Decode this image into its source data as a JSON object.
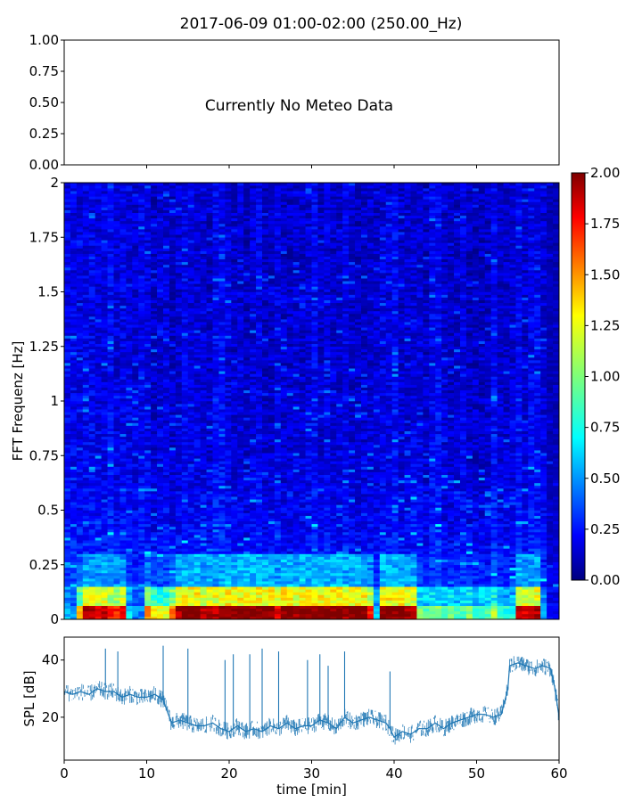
{
  "title": "2017-06-09 01:00-02:00 (250.00_Hz)",
  "chart_data": [
    {
      "type": "line",
      "panel": "meteo",
      "annotation": "Currently No Meteo Data",
      "ylim": [
        0,
        1
      ],
      "yticks": [
        "0.00",
        "0.25",
        "0.50",
        "0.75",
        "1.00"
      ],
      "xlim": [
        0,
        60
      ],
      "xticks_shown": false,
      "grid": false
    },
    {
      "type": "heatmap",
      "panel": "spectrogram",
      "ylabel": "FFT Frequenz [Hz]",
      "ylim": [
        0,
        2
      ],
      "yticks": [
        "0",
        "0.25",
        "0.5",
        "0.75",
        "1",
        "1.25",
        "1.5",
        "1.75",
        "2"
      ],
      "xlim": [
        0,
        60
      ],
      "colormap": "jet",
      "colorbar": {
        "range": [
          0,
          2
        ],
        "ticks": [
          "0.00",
          "0.25",
          "0.50",
          "0.75",
          "1.00",
          "1.25",
          "1.50",
          "1.75",
          "2.00"
        ]
      },
      "low_band_intensity": {
        "x": [
          1,
          2,
          3,
          4,
          5,
          6,
          7,
          8,
          9,
          10,
          11,
          12,
          13,
          14,
          15,
          16,
          17,
          18,
          19,
          20,
          21,
          22,
          23,
          24,
          25,
          26,
          27,
          28,
          29,
          30,
          31,
          32,
          33,
          34,
          35,
          36,
          37,
          38,
          39,
          40,
          41,
          42,
          43,
          44,
          45,
          46,
          47,
          48,
          49,
          50,
          51,
          52,
          53,
          54,
          55,
          56,
          57,
          58,
          59
        ],
        "values": [
          0.6,
          1.4,
          1.9,
          1.8,
          1.9,
          1.7,
          1.8,
          0.7,
          0.5,
          1.5,
          1.3,
          1.2,
          1.5,
          1.9,
          2.0,
          2.0,
          1.9,
          1.9,
          2.0,
          2.0,
          2.0,
          2.0,
          2.0,
          2.0,
          2.0,
          1.8,
          2.0,
          1.9,
          2.0,
          2.0,
          2.0,
          2.0,
          2.0,
          1.9,
          2.0,
          2.0,
          1.7,
          0.7,
          2.0,
          2.0,
          2.0,
          1.9,
          1.0,
          0.9,
          1.0,
          0.9,
          1.0,
          0.9,
          1.0,
          0.8,
          0.9,
          1.1,
          0.9,
          0.8,
          1.9,
          1.8,
          1.9,
          0.6,
          0.4
        ]
      }
    },
    {
      "type": "line",
      "panel": "spl",
      "ylabel": "SPL [dB]",
      "xlabel": "time [min]",
      "xlim": [
        0,
        60
      ],
      "ylim": [
        5,
        48
      ],
      "xticks": [
        "0",
        "10",
        "20",
        "30",
        "40",
        "50",
        "60"
      ],
      "yticks": [
        "20",
        "40"
      ],
      "color": "#1f77b4",
      "x": [
        0,
        1,
        2,
        3,
        4,
        5,
        6,
        7,
        8,
        9,
        10,
        11,
        12,
        12.5,
        13,
        14,
        15,
        16,
        17,
        18,
        19,
        20,
        21,
        22,
        23,
        24,
        25,
        26,
        27,
        28,
        29,
        30,
        31,
        32,
        33,
        34,
        35,
        36,
        37,
        38,
        39,
        39.5,
        40,
        41,
        42,
        43,
        44,
        45,
        46,
        47,
        48,
        49,
        50,
        51,
        52,
        53,
        53.8,
        54,
        55,
        56,
        57,
        58,
        59,
        59.5,
        60
      ],
      "y": [
        29,
        28,
        29,
        28,
        30,
        29,
        29,
        27,
        28,
        27,
        27,
        28,
        26,
        22,
        18,
        19,
        18,
        17,
        17,
        18,
        16,
        15,
        17,
        15,
        16,
        15,
        17,
        16,
        18,
        16,
        17,
        17,
        19,
        18,
        16,
        20,
        18,
        19,
        20,
        19,
        18,
        16,
        13,
        15,
        14,
        16,
        16,
        18,
        16,
        18,
        19,
        20,
        21,
        21,
        20,
        21,
        30,
        38,
        39,
        38,
        37,
        38,
        37,
        30,
        20
      ],
      "spikes": [
        {
          "x": 5,
          "y": 44
        },
        {
          "x": 6.5,
          "y": 43
        },
        {
          "x": 12,
          "y": 45
        },
        {
          "x": 15,
          "y": 44
        },
        {
          "x": 19.5,
          "y": 40
        },
        {
          "x": 20.5,
          "y": 42
        },
        {
          "x": 22.5,
          "y": 42
        },
        {
          "x": 24,
          "y": 44
        },
        {
          "x": 26,
          "y": 43
        },
        {
          "x": 29.5,
          "y": 40
        },
        {
          "x": 31,
          "y": 42
        },
        {
          "x": 32,
          "y": 38
        },
        {
          "x": 34,
          "y": 43
        },
        {
          "x": 39.5,
          "y": 36
        }
      ]
    }
  ]
}
